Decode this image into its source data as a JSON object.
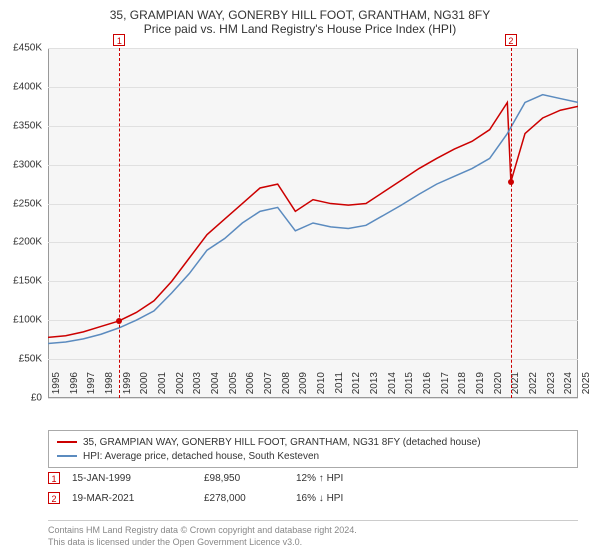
{
  "title": {
    "line1": "35, GRAMPIAN WAY, GONERBY HILL FOOT, GRANTHAM, NG31 8FY",
    "line2": "Price paid vs. HM Land Registry's House Price Index (HPI)"
  },
  "chart": {
    "type": "line",
    "background_color": "#f6f6f6",
    "grid_color": "#e0e0e0",
    "border_color": "#999999",
    "ylim": [
      0,
      450000
    ],
    "ytick_step": 50000,
    "yticks": [
      "£0",
      "£50K",
      "£100K",
      "£150K",
      "£200K",
      "£250K",
      "£300K",
      "£350K",
      "£400K",
      "£450K"
    ],
    "xlim": [
      1995,
      2025
    ],
    "xticks": [
      "1995",
      "1996",
      "1997",
      "1998",
      "1999",
      "2000",
      "2001",
      "2002",
      "2003",
      "2004",
      "2005",
      "2006",
      "2007",
      "2008",
      "2009",
      "2010",
      "2011",
      "2012",
      "2013",
      "2014",
      "2015",
      "2016",
      "2017",
      "2018",
      "2019",
      "2020",
      "2021",
      "2022",
      "2023",
      "2024",
      "2025"
    ],
    "series": [
      {
        "name": "35, GRAMPIAN WAY, GONERBY HILL FOOT, GRANTHAM, NG31 8FY (detached house)",
        "color": "#cc0000",
        "width": 1.5,
        "data": [
          [
            1995,
            78000
          ],
          [
            1996,
            80000
          ],
          [
            1997,
            85000
          ],
          [
            1998,
            92000
          ],
          [
            1999,
            98950
          ],
          [
            2000,
            110000
          ],
          [
            2001,
            125000
          ],
          [
            2002,
            150000
          ],
          [
            2003,
            180000
          ],
          [
            2004,
            210000
          ],
          [
            2005,
            230000
          ],
          [
            2006,
            250000
          ],
          [
            2007,
            270000
          ],
          [
            2008,
            275000
          ],
          [
            2009,
            240000
          ],
          [
            2010,
            255000
          ],
          [
            2011,
            250000
          ],
          [
            2012,
            248000
          ],
          [
            2013,
            250000
          ],
          [
            2014,
            265000
          ],
          [
            2015,
            280000
          ],
          [
            2016,
            295000
          ],
          [
            2017,
            308000
          ],
          [
            2018,
            320000
          ],
          [
            2019,
            330000
          ],
          [
            2020,
            345000
          ],
          [
            2021,
            380000
          ],
          [
            2021.2,
            278000
          ],
          [
            2022,
            340000
          ],
          [
            2023,
            360000
          ],
          [
            2024,
            370000
          ],
          [
            2025,
            375000
          ]
        ]
      },
      {
        "name": "HPI: Average price, detached house, South Kesteven",
        "color": "#5b8bbf",
        "width": 1.5,
        "data": [
          [
            1995,
            70000
          ],
          [
            1996,
            72000
          ],
          [
            1997,
            76000
          ],
          [
            1998,
            82000
          ],
          [
            1999,
            90000
          ],
          [
            2000,
            100000
          ],
          [
            2001,
            112000
          ],
          [
            2002,
            135000
          ],
          [
            2003,
            160000
          ],
          [
            2004,
            190000
          ],
          [
            2005,
            205000
          ],
          [
            2006,
            225000
          ],
          [
            2007,
            240000
          ],
          [
            2008,
            245000
          ],
          [
            2009,
            215000
          ],
          [
            2010,
            225000
          ],
          [
            2011,
            220000
          ],
          [
            2012,
            218000
          ],
          [
            2013,
            222000
          ],
          [
            2014,
            235000
          ],
          [
            2015,
            248000
          ],
          [
            2016,
            262000
          ],
          [
            2017,
            275000
          ],
          [
            2018,
            285000
          ],
          [
            2019,
            295000
          ],
          [
            2020,
            308000
          ],
          [
            2021,
            340000
          ],
          [
            2022,
            380000
          ],
          [
            2023,
            390000
          ],
          [
            2024,
            385000
          ],
          [
            2025,
            380000
          ]
        ]
      }
    ],
    "markers": [
      {
        "id": "1",
        "x": 1999.04,
        "y": 98950,
        "box_y": -14
      },
      {
        "id": "2",
        "x": 2021.2,
        "y": 278000,
        "box_y": -14
      }
    ]
  },
  "legend": {
    "items": [
      {
        "color": "#cc0000",
        "label": "35, GRAMPIAN WAY, GONERBY HILL FOOT, GRANTHAM, NG31 8FY (detached house)"
      },
      {
        "color": "#5b8bbf",
        "label": "HPI: Average price, detached house, South Kesteven"
      }
    ]
  },
  "transactions": [
    {
      "id": "1",
      "date": "15-JAN-1999",
      "price": "£98,950",
      "delta": "12% ↑ HPI"
    },
    {
      "id": "2",
      "date": "19-MAR-2021",
      "price": "£278,000",
      "delta": "16% ↓ HPI"
    }
  ],
  "footer": {
    "line1": "Contains HM Land Registry data © Crown copyright and database right 2024.",
    "line2": "This data is licensed under the Open Government Licence v3.0."
  }
}
